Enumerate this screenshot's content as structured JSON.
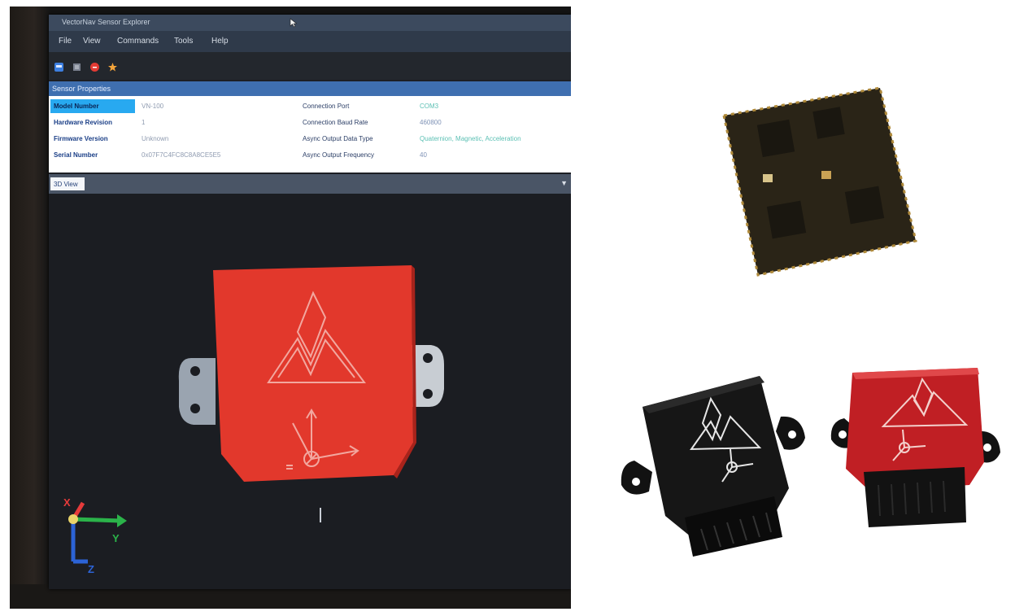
{
  "window": {
    "title": "VectorNav Sensor Explorer"
  },
  "menu": [
    "File",
    "View",
    "Commands",
    "Tools",
    "Help"
  ],
  "toolbar_icons": [
    "connect-icon",
    "disconnect-icon",
    "stop-icon",
    "favorite-icon"
  ],
  "sensor_properties": {
    "header": "Sensor Properties",
    "rows": [
      {
        "label": "Model Number",
        "value": "VN-100",
        "conn_label": "Connection Port",
        "conn_value": "COM3"
      },
      {
        "label": "Hardware Revision",
        "value": "1",
        "conn_label": "Connection Baud Rate",
        "conn_value": "460800"
      },
      {
        "label": "Firmware Version",
        "value": "Unknown",
        "conn_label": "Async Output Data Type",
        "conn_value": "Quaternion, Magnetic, Acceleration"
      },
      {
        "label": "Serial Number",
        "value": "0x07F7C4FC8C8A8CE5E5",
        "conn_label": "Async Output Frequency",
        "conn_value": "40"
      }
    ]
  },
  "view": {
    "tab_label": "3D View",
    "axis_x": "X",
    "axis_y": "Y",
    "axis_z": "Z",
    "model_color": "#e2382c"
  },
  "colors": {
    "titlebar": "#3c4a5e",
    "selection": "#28a9f0",
    "sensor_red": "#c01f24",
    "sensor_black": "#141414"
  }
}
